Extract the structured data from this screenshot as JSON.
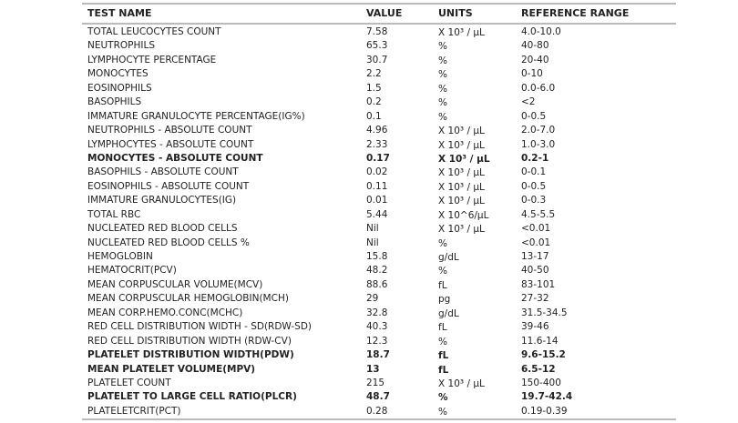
{
  "headers": {
    "test_name": "TEST NAME",
    "value": "VALUE",
    "units": "UNITS",
    "reference_range": "REFERENCE RANGE"
  },
  "rows": [
    {
      "name": "TOTAL LEUCOCYTES COUNT",
      "value": "7.58",
      "units": "X 10³ / µL",
      "range": "4.0-10.0",
      "bold": false
    },
    {
      "name": "NEUTROPHILS",
      "value": "65.3",
      "units": "%",
      "range": "40-80",
      "bold": false
    },
    {
      "name": "LYMPHOCYTE PERCENTAGE",
      "value": "30.7",
      "units": "%",
      "range": "20-40",
      "bold": false
    },
    {
      "name": "MONOCYTES",
      "value": "2.2",
      "units": "%",
      "range": "0-10",
      "bold": false
    },
    {
      "name": "EOSINOPHILS",
      "value": "1.5",
      "units": "%",
      "range": "0.0-6.0",
      "bold": false
    },
    {
      "name": "BASOPHILS",
      "value": "0.2",
      "units": "%",
      "range": "<2",
      "bold": false
    },
    {
      "name": "IMMATURE GRANULOCYTE PERCENTAGE(IG%)",
      "value": "0.1",
      "units": "%",
      "range": "0-0.5",
      "bold": false
    },
    {
      "name": "NEUTROPHILS - ABSOLUTE COUNT",
      "value": "4.96",
      "units": "X 10³ / µL",
      "range": "2.0-7.0",
      "bold": false
    },
    {
      "name": "LYMPHOCYTES - ABSOLUTE COUNT",
      "value": "2.33",
      "units": "X 10³ / µL",
      "range": "1.0-3.0",
      "bold": false
    },
    {
      "name": "MONOCYTES - ABSOLUTE COUNT",
      "value": "0.17",
      "units": "X 10³ / µL",
      "range": "0.2-1",
      "bold": true
    },
    {
      "name": "BASOPHILS - ABSOLUTE COUNT",
      "value": "0.02",
      "units": "X 10³ / µL",
      "range": "0-0.1",
      "bold": false
    },
    {
      "name": "EOSINOPHILS - ABSOLUTE COUNT",
      "value": "0.11",
      "units": "X 10³ / µL",
      "range": "0-0.5",
      "bold": false
    },
    {
      "name": "IMMATURE GRANULOCYTES(IG)",
      "value": "0.01",
      "units": "X 10³ / µL",
      "range": "0-0.3",
      "bold": false
    },
    {
      "name": "TOTAL RBC",
      "value": "5.44",
      "units": "X 10^6/µL",
      "range": "4.5-5.5",
      "bold": false
    },
    {
      "name": "NUCLEATED RED BLOOD CELLS",
      "value": "Nil",
      "units": "X 10³ / µL",
      "range": "<0.01",
      "bold": false
    },
    {
      "name": "NUCLEATED RED BLOOD CELLS %",
      "value": "Nil",
      "units": "%",
      "range": "<0.01",
      "bold": false
    },
    {
      "name": "HEMOGLOBIN",
      "value": "15.8",
      "units": "g/dL",
      "range": "13-17",
      "bold": false
    },
    {
      "name": "HEMATOCRIT(PCV)",
      "value": "48.2",
      "units": "%",
      "range": "40-50",
      "bold": false
    },
    {
      "name": "MEAN CORPUSCULAR VOLUME(MCV)",
      "value": "88.6",
      "units": "fL",
      "range": "83-101",
      "bold": false
    },
    {
      "name": "MEAN CORPUSCULAR HEMOGLOBIN(MCH)",
      "value": "29",
      "units": "pg",
      "range": "27-32",
      "bold": false
    },
    {
      "name": "MEAN CORP.HEMO.CONC(MCHC)",
      "value": "32.8",
      "units": "g/dL",
      "range": "31.5-34.5",
      "bold": false
    },
    {
      "name": "RED CELL DISTRIBUTION WIDTH - SD(RDW-SD)",
      "value": "40.3",
      "units": "fL",
      "range": "39-46",
      "bold": false
    },
    {
      "name": "RED CELL DISTRIBUTION WIDTH (RDW-CV)",
      "value": "12.3",
      "units": "%",
      "range": "11.6-14",
      "bold": false
    },
    {
      "name": "PLATELET DISTRIBUTION WIDTH(PDW)",
      "value": "18.7",
      "units": "fL",
      "range": "9.6-15.2",
      "bold": true
    },
    {
      "name": "MEAN PLATELET VOLUME(MPV)",
      "value": "13",
      "units": "fL",
      "range": "6.5-12",
      "bold": true
    },
    {
      "name": "PLATELET COUNT",
      "value": "215",
      "units": "X 10³ / µL",
      "range": "150-400",
      "bold": false
    },
    {
      "name": "PLATELET TO LARGE CELL RATIO(PLCR)",
      "value": "48.7",
      "units": "%",
      "range": "19.7-42.4",
      "bold": true
    },
    {
      "name": "PLATELETCRIT(PCT)",
      "value": "0.28",
      "units": "%",
      "range": "0.19-0.39",
      "bold": false
    }
  ]
}
